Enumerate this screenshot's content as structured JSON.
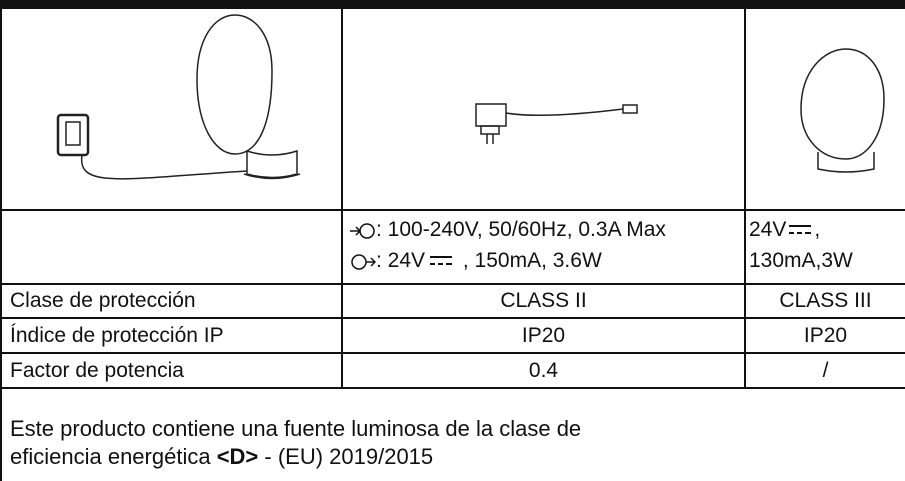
{
  "table": {
    "power": {
      "input": ": 100-240V, 50/60Hz, 0.3A Max",
      "output_a": ": 24V",
      "output_b": " , 150mA, 3.6W",
      "col3_a": "24V",
      "col3_b": ",",
      "col3_c": "130mA,3W"
    },
    "rows": [
      [
        "Clase de protección",
        "CLASS II",
        "CLASS III"
      ],
      [
        "Índice de protección IP",
        "IP20",
        "IP20"
      ],
      [
        "Factor de potencia",
        "0.4",
        "/"
      ]
    ]
  },
  "note": {
    "line1": "Este producto contiene una fuente luminosa de la clase de",
    "line2_a": "eficiencia energética ",
    "line2_bold": "<D>",
    "line2_b": " - (EU) 2019/2015"
  }
}
